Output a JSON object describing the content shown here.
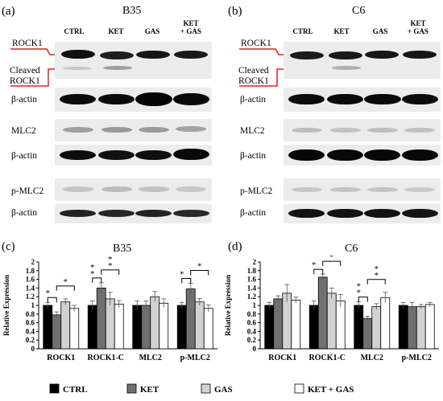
{
  "panels": {
    "a": {
      "label": "(a)",
      "title": "B35",
      "columns": [
        "CTRL",
        "KET",
        "GAS",
        "KET\n+ GAS"
      ],
      "rows": [
        "ROCK1",
        "Cleaved\nROCK1",
        "β-actin",
        "MLC2",
        "β-actin",
        "p-MLC2",
        "β-actin"
      ]
    },
    "b": {
      "label": "(b)",
      "title": "C6",
      "columns": [
        "CTRL",
        "KET",
        "GAS",
        "KET\n+ GAS"
      ],
      "rows": [
        "ROCK1",
        "Cleaved\nROCK1",
        "β-actin",
        "MLC2",
        "β-actin",
        "p-MLC2",
        "β-actin"
      ]
    }
  },
  "colors": {
    "annotation_red": "#e0201b",
    "ctrl": "#000000",
    "ket": "#707070",
    "gas": "#d2d2d2",
    "ketgas": "#ffffff"
  },
  "chart_data": [
    {
      "type": "bar",
      "panel_label": "(c)",
      "title": "B35",
      "ylabel": "Relative Expression",
      "ylim": [
        0,
        2
      ],
      "yticks": [
        "0",
        "0.2",
        "0.4",
        "0.6",
        "0.8",
        "1",
        "1.2",
        "1.4",
        "1.6",
        "1.8",
        "2"
      ],
      "categories": [
        "ROCK1",
        "ROCK1-C",
        "MLC2",
        "p-MLC2"
      ],
      "series": [
        {
          "name": "CTRL",
          "values": [
            1.0,
            1.0,
            1.0,
            1.0
          ],
          "errors": [
            0.07,
            0.1,
            0.1,
            0.07
          ]
        },
        {
          "name": "KET",
          "values": [
            0.78,
            1.4,
            1.0,
            1.38
          ],
          "errors": [
            0.07,
            0.12,
            0.1,
            0.13
          ]
        },
        {
          "name": "GAS",
          "values": [
            1.08,
            1.15,
            1.2,
            1.08
          ],
          "errors": [
            0.07,
            0.15,
            0.12,
            0.08
          ]
        },
        {
          "name": "KET + GAS",
          "values": [
            0.93,
            1.03,
            1.05,
            0.93
          ],
          "errors": [
            0.07,
            0.08,
            0.1,
            0.08
          ]
        }
      ],
      "significance": [
        {
          "category": 0,
          "from": 0,
          "to": 1,
          "stars": "*"
        },
        {
          "category": 0,
          "from": 1,
          "to": 3,
          "stars": "*"
        },
        {
          "category": 1,
          "from": 0,
          "to": 1,
          "stars": "**"
        },
        {
          "category": 1,
          "from": 1,
          "to": 3,
          "stars": "**"
        },
        {
          "category": 3,
          "from": 0,
          "to": 1,
          "stars": "*"
        },
        {
          "category": 3,
          "from": 1,
          "to": 3,
          "stars": "*"
        }
      ]
    },
    {
      "type": "bar",
      "panel_label": "(d)",
      "title": "C6",
      "ylabel": "Relative Expression",
      "ylim": [
        0,
        2
      ],
      "yticks": [
        "0",
        "0.2",
        "0.4",
        "0.6",
        "0.8",
        "1",
        "1.2",
        "1.4",
        "1.6",
        "1.8",
        "2"
      ],
      "categories": [
        "ROCK1",
        "ROCK1-C",
        "MLC2",
        "p-MLC2"
      ],
      "series": [
        {
          "name": "CTRL",
          "values": [
            1.0,
            1.0,
            1.0,
            1.0
          ],
          "errors": [
            0.07,
            0.1,
            0.08,
            0.07
          ]
        },
        {
          "name": "KET",
          "values": [
            1.15,
            1.65,
            0.7,
            0.97
          ],
          "errors": [
            0.07,
            0.07,
            0.05,
            0.1
          ]
        },
        {
          "name": "GAS",
          "values": [
            1.28,
            1.28,
            0.97,
            0.97
          ],
          "errors": [
            0.2,
            0.12,
            0.07,
            0.05
          ]
        },
        {
          "name": "KET + GAS",
          "values": [
            1.12,
            1.1,
            1.18,
            1.02
          ],
          "errors": [
            0.07,
            0.15,
            0.12,
            0.05
          ]
        }
      ],
      "significance": [
        {
          "category": 1,
          "from": 0,
          "to": 1,
          "stars": "*"
        },
        {
          "category": 1,
          "from": 1,
          "to": 3,
          "stars": "*"
        },
        {
          "category": 2,
          "from": 0,
          "to": 1,
          "stars": "**"
        },
        {
          "category": 2,
          "from": 1,
          "to": 3,
          "stars": "**"
        }
      ]
    }
  ]
}
